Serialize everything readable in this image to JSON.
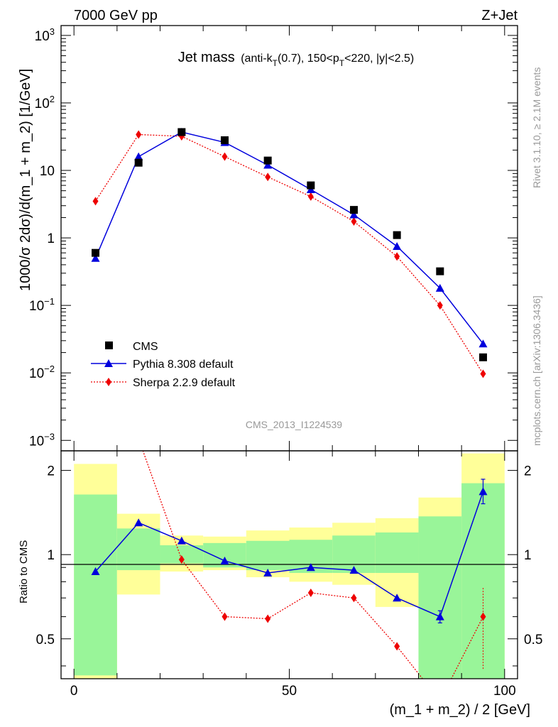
{
  "header": {
    "left": "7000 GeV pp",
    "right": "Z+Jet"
  },
  "title": {
    "main": "Jet mass",
    "sub_parts": [
      "(anti-k",
      "T",
      "(0.7), 150<p",
      "T",
      "<220, |y|<2.5)"
    ]
  },
  "side_labels": {
    "rivet": "Rivet 3.1.10, ≥ 2.1M events",
    "mcplots": "mcplots.cern.ch [arXiv:1306.3436]"
  },
  "analysis_id": "CMS_2013_I1224539",
  "axes": {
    "ylabel_main": "1000/σ 2dσ)/d(m_1 + m_2) [1/GeV]",
    "ylabel_ratio": "Ratio to CMS",
    "xlabel": "(m_1 + m_2) / 2 [GeV]",
    "x_ticks": [
      "0",
      "50",
      "100"
    ],
    "y_ticks_main": [
      {
        "base": "10",
        "exp": "3",
        "value": 1000
      },
      {
        "base": "10",
        "exp": "2",
        "value": 100
      },
      {
        "base": "10",
        "exp": "",
        "value": 10
      },
      {
        "base": "1",
        "exp": "",
        "value": 1
      },
      {
        "base": "10",
        "exp": "−1",
        "value": 0.1
      },
      {
        "base": "10",
        "exp": "−2",
        "value": 0.01
      },
      {
        "base": "10",
        "exp": "−3",
        "value": 0.001
      }
    ],
    "y_ticks_ratio": [
      "2",
      "1",
      "0.5"
    ]
  },
  "legend": [
    {
      "label": "CMS",
      "color": "#000000",
      "marker": "square"
    },
    {
      "label": "Pythia 8.308 default",
      "color": "#0000dd",
      "marker": "triangle"
    },
    {
      "label": "Sherpa 2.2.9 default",
      "color": "#ee0000",
      "marker": "diamond"
    }
  ],
  "chart_data": {
    "type": "scatter",
    "x_bins": [
      [
        0,
        10
      ],
      [
        10,
        20
      ],
      [
        20,
        30
      ],
      [
        30,
        40
      ],
      [
        40,
        50
      ],
      [
        50,
        60
      ],
      [
        60,
        70
      ],
      [
        70,
        80
      ],
      [
        80,
        90
      ],
      [
        90,
        100
      ]
    ],
    "x": [
      5,
      15,
      25,
      35,
      45,
      55,
      65,
      75,
      85,
      95
    ],
    "xlim": [
      -3,
      103
    ],
    "ylim_main": [
      0.0007,
      1400
    ],
    "yscale_main": "log",
    "ylim_ratio": [
      0.36,
      2.35
    ],
    "yscale_ratio": "log",
    "series": [
      {
        "name": "CMS",
        "values": [
          0.6,
          13,
          37,
          28,
          14,
          6.0,
          2.6,
          1.1,
          0.32,
          0.017
        ]
      },
      {
        "name": "Pythia 8.308 default",
        "values": [
          0.5,
          16,
          37,
          26,
          12,
          5.2,
          2.2,
          0.75,
          0.18,
          0.027
        ]
      },
      {
        "name": "Sherpa 2.2.9 default",
        "values": [
          3.5,
          34,
          32,
          16,
          8.0,
          4.1,
          1.75,
          0.53,
          0.1,
          0.0097
        ]
      }
    ],
    "ratio": {
      "pythia": [
        0.87,
        1.3,
        1.12,
        0.95,
        0.86,
        0.9,
        0.88,
        0.7,
        0.6,
        1.68
      ],
      "sherpa": [
        5.8,
        2.6,
        0.96,
        0.6,
        0.59,
        0.73,
        0.7,
        0.47,
        0.3,
        0.6
      ],
      "band_inner": [
        [
          0.37,
          1.64
        ],
        [
          0.88,
          1.24
        ],
        [
          0.93,
          1.08
        ],
        [
          0.9,
          1.1
        ],
        [
          0.88,
          1.12
        ],
        [
          0.86,
          1.13
        ],
        [
          0.86,
          1.17
        ],
        [
          0.86,
          1.2
        ],
        [
          0.35,
          1.37
        ],
        [
          0.35,
          1.8
        ]
      ],
      "band_outer": [
        [
          0.35,
          2.11
        ],
        [
          0.72,
          1.4
        ],
        [
          0.87,
          1.17
        ],
        [
          0.88,
          1.16
        ],
        [
          0.83,
          1.22
        ],
        [
          0.8,
          1.25
        ],
        [
          0.78,
          1.3
        ],
        [
          0.65,
          1.35
        ],
        [
          0.36,
          1.6
        ],
        [
          0.34,
          2.3
        ]
      ]
    },
    "grid": false
  }
}
